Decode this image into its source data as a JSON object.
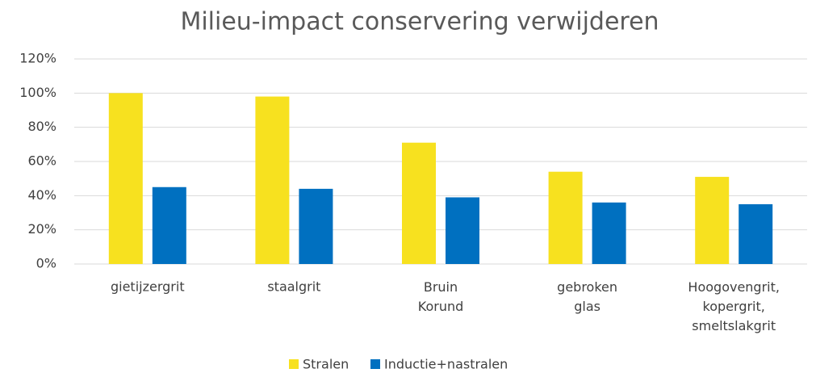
{
  "chart_data": {
    "type": "bar",
    "title": "Milieu-impact conservering verwijderen",
    "categories": [
      "gietijzergrit",
      "staalgrit",
      "Bruin Korund",
      "gebroken glas",
      "Hoogovengrit, kopergrit, smeltslakgrit"
    ],
    "series": [
      {
        "name": "Stralen",
        "color": "#f7e11f",
        "values": [
          100,
          98,
          71,
          54,
          51
        ]
      },
      {
        "name": "Inductie+nastralen",
        "color": "#0070c0",
        "values": [
          45,
          44,
          39,
          36,
          35
        ]
      }
    ],
    "ylim": [
      0,
      120
    ],
    "yticks": [
      {
        "value": 0,
        "label": "0%"
      },
      {
        "value": 20,
        "label": "20%"
      },
      {
        "value": 40,
        "label": "40%"
      },
      {
        "value": 60,
        "label": "60%"
      },
      {
        "value": 80,
        "label": "80%"
      },
      {
        "value": 100,
        "label": "100%"
      },
      {
        "value": 120,
        "label": "120%"
      }
    ],
    "grid": true,
    "legend": "bottom"
  }
}
